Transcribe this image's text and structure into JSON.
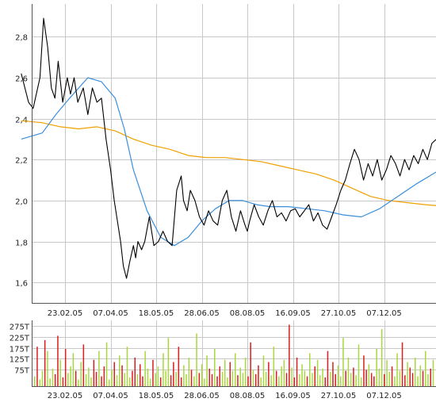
{
  "chart_data": [
    {
      "type": "line",
      "ylim": [
        1.5,
        2.96
      ],
      "yticks": [
        "1,6",
        "1,8",
        "2,0",
        "2,2",
        "2,4",
        "2,6",
        "2,8"
      ],
      "ytick_values": [
        1.6,
        1.8,
        2.0,
        2.2,
        2.4,
        2.6,
        2.8
      ],
      "xticks": [
        "23.02.05",
        "07.04.05",
        "18.05.05",
        "28.06.05",
        "08.08.05",
        "16.09.05",
        "27.10.05",
        "07.12.05"
      ],
      "xtick_positions": [
        0.5,
        1.5,
        2.5,
        3.5,
        4.5,
        5.5,
        6.5,
        7.5
      ],
      "xlim": [
        -0.5,
        8.7
      ],
      "grid": true,
      "colors": {
        "price": "#000000",
        "ma_short": "#3a8fdc",
        "ma_long": "#f0a000"
      },
      "series": [
        {
          "key": "price",
          "x": [
            -0.46,
            -0.3,
            -0.2,
            -0.05,
            0.03,
            0.12,
            0.2,
            0.28,
            0.35,
            0.45,
            0.55,
            0.62,
            0.7,
            0.78,
            0.9,
            1.0,
            1.1,
            1.2,
            1.3,
            1.4,
            1.5,
            1.58,
            1.65,
            1.72,
            1.78,
            1.85,
            1.92,
            2.0,
            2.05,
            2.1,
            2.18,
            2.25,
            2.35,
            2.45,
            2.55,
            2.65,
            2.75,
            2.85,
            2.95,
            3.05,
            3.1,
            3.18,
            3.25,
            3.35,
            3.45,
            3.55,
            3.65,
            3.75,
            3.85,
            3.95,
            4.05,
            4.15,
            4.25,
            4.35,
            4.45,
            4.5,
            4.55,
            4.65,
            4.75,
            4.85,
            4.95,
            5.05,
            5.15,
            5.25,
            5.35,
            5.45,
            5.55,
            5.65,
            5.75,
            5.85,
            5.95,
            6.05,
            6.15,
            6.25,
            6.35,
            6.45,
            6.55,
            6.65,
            6.75,
            6.85,
            6.95,
            7.05,
            7.15,
            7.25,
            7.35,
            7.45,
            7.55,
            7.65,
            7.75,
            7.85,
            7.95,
            8.05,
            8.15,
            8.25,
            8.35,
            8.45,
            8.55,
            8.65
          ],
          "y": [
            2.62,
            2.48,
            2.45,
            2.6,
            2.89,
            2.75,
            2.55,
            2.5,
            2.68,
            2.48,
            2.6,
            2.52,
            2.6,
            2.48,
            2.55,
            2.42,
            2.55,
            2.48,
            2.5,
            2.3,
            2.15,
            2.0,
            1.9,
            1.8,
            1.68,
            1.62,
            1.7,
            1.78,
            1.72,
            1.8,
            1.76,
            1.8,
            1.92,
            1.78,
            1.8,
            1.85,
            1.8,
            1.78,
            2.05,
            2.12,
            2.0,
            1.95,
            2.05,
            2.0,
            1.92,
            1.88,
            1.95,
            1.9,
            1.88,
            2.0,
            2.05,
            1.92,
            1.85,
            1.95,
            1.88,
            1.85,
            1.9,
            1.98,
            1.92,
            1.88,
            1.95,
            2.0,
            1.92,
            1.94,
            1.9,
            1.95,
            1.96,
            1.92,
            1.95,
            1.98,
            1.9,
            1.94,
            1.88,
            1.86,
            1.92,
            1.98,
            2.05,
            2.1,
            2.18,
            2.25,
            2.2,
            2.1,
            2.18,
            2.12,
            2.2,
            2.1,
            2.15,
            2.22,
            2.18,
            2.12,
            2.2,
            2.15,
            2.22,
            2.18,
            2.25,
            2.2,
            2.28,
            2.3
          ]
        },
        {
          "key": "ma_short",
          "x": [
            -0.46,
            0.0,
            0.3,
            0.6,
            1.0,
            1.3,
            1.6,
            1.8,
            2.0,
            2.3,
            2.6,
            2.9,
            3.2,
            3.5,
            3.8,
            4.1,
            4.4,
            4.7,
            5.0,
            5.4,
            5.8,
            6.2,
            6.6,
            7.0,
            7.4,
            7.8,
            8.2,
            8.65
          ],
          "y": [
            2.3,
            2.33,
            2.42,
            2.5,
            2.6,
            2.58,
            2.5,
            2.35,
            2.15,
            1.95,
            1.82,
            1.78,
            1.82,
            1.9,
            1.96,
            2.0,
            2.0,
            1.98,
            1.97,
            1.97,
            1.96,
            1.95,
            1.93,
            1.92,
            1.96,
            2.02,
            2.08,
            2.14
          ]
        },
        {
          "key": "ma_long",
          "x": [
            -0.46,
            0.0,
            0.4,
            0.8,
            1.2,
            1.6,
            2.0,
            2.4,
            2.8,
            3.2,
            3.6,
            4.0,
            4.4,
            4.8,
            5.2,
            5.6,
            6.0,
            6.4,
            6.8,
            7.2,
            7.6,
            8.0,
            8.4,
            8.65
          ],
          "y": [
            2.39,
            2.38,
            2.36,
            2.35,
            2.36,
            2.34,
            2.3,
            2.27,
            2.25,
            2.22,
            2.21,
            2.21,
            2.2,
            2.19,
            2.17,
            2.15,
            2.13,
            2.1,
            2.06,
            2.02,
            2.0,
            1.99,
            1.98,
            1.975
          ]
        }
      ]
    },
    {
      "type": "bar",
      "ylim": [
        0,
        300
      ],
      "yticks": [
        "75T",
        "125T",
        "175T",
        "225T",
        "275T"
      ],
      "ytick_values": [
        75,
        125,
        175,
        225,
        275
      ],
      "xticks": [
        "23.02.05",
        "07.04.05",
        "18.05.05",
        "28.06.05",
        "08.08.05",
        "16.09.05",
        "27.10.05",
        "07.12.05"
      ],
      "grid": true,
      "colors": {
        "up": "#a7d83c",
        "down": "#d81e1e"
      },
      "values": [
        45,
        180,
        30,
        70,
        210,
        160,
        35,
        80,
        55,
        230,
        120,
        40,
        170,
        60,
        90,
        150,
        70,
        30,
        110,
        190,
        55,
        85,
        40,
        120,
        65,
        160,
        45,
        90,
        200,
        30,
        75,
        110,
        50,
        140,
        95,
        60,
        180,
        40,
        70,
        130,
        55,
        100,
        45,
        160,
        80,
        35,
        120,
        60,
        90,
        40,
        150,
        70,
        220,
        50,
        110,
        65,
        180,
        40,
        95,
        55,
        130,
        75,
        45,
        240,
        60,
        100,
        35,
        140,
        80,
        55,
        170,
        45,
        90,
        65,
        120,
        40,
        110,
        70,
        150,
        50,
        85,
        60,
        130,
        45,
        200,
        75,
        55,
        95,
        40,
        140,
        65,
        110,
        50,
        180,
        70,
        45,
        90,
        120,
        60,
        280,
        85,
        40,
        130,
        55,
        100,
        70,
        45,
        150,
        60,
        90,
        120,
        50,
        80,
        40,
        160,
        65,
        110,
        55,
        95,
        45,
        220,
        70,
        130,
        60,
        85,
        50,
        190,
        40,
        140,
        75,
        100,
        60,
        45,
        170,
        80,
        260,
        55,
        120,
        65,
        90,
        45,
        150,
        70,
        200,
        50,
        110,
        85,
        60,
        130,
        45,
        95,
        70,
        160,
        55,
        80,
        120
      ]
    }
  ]
}
